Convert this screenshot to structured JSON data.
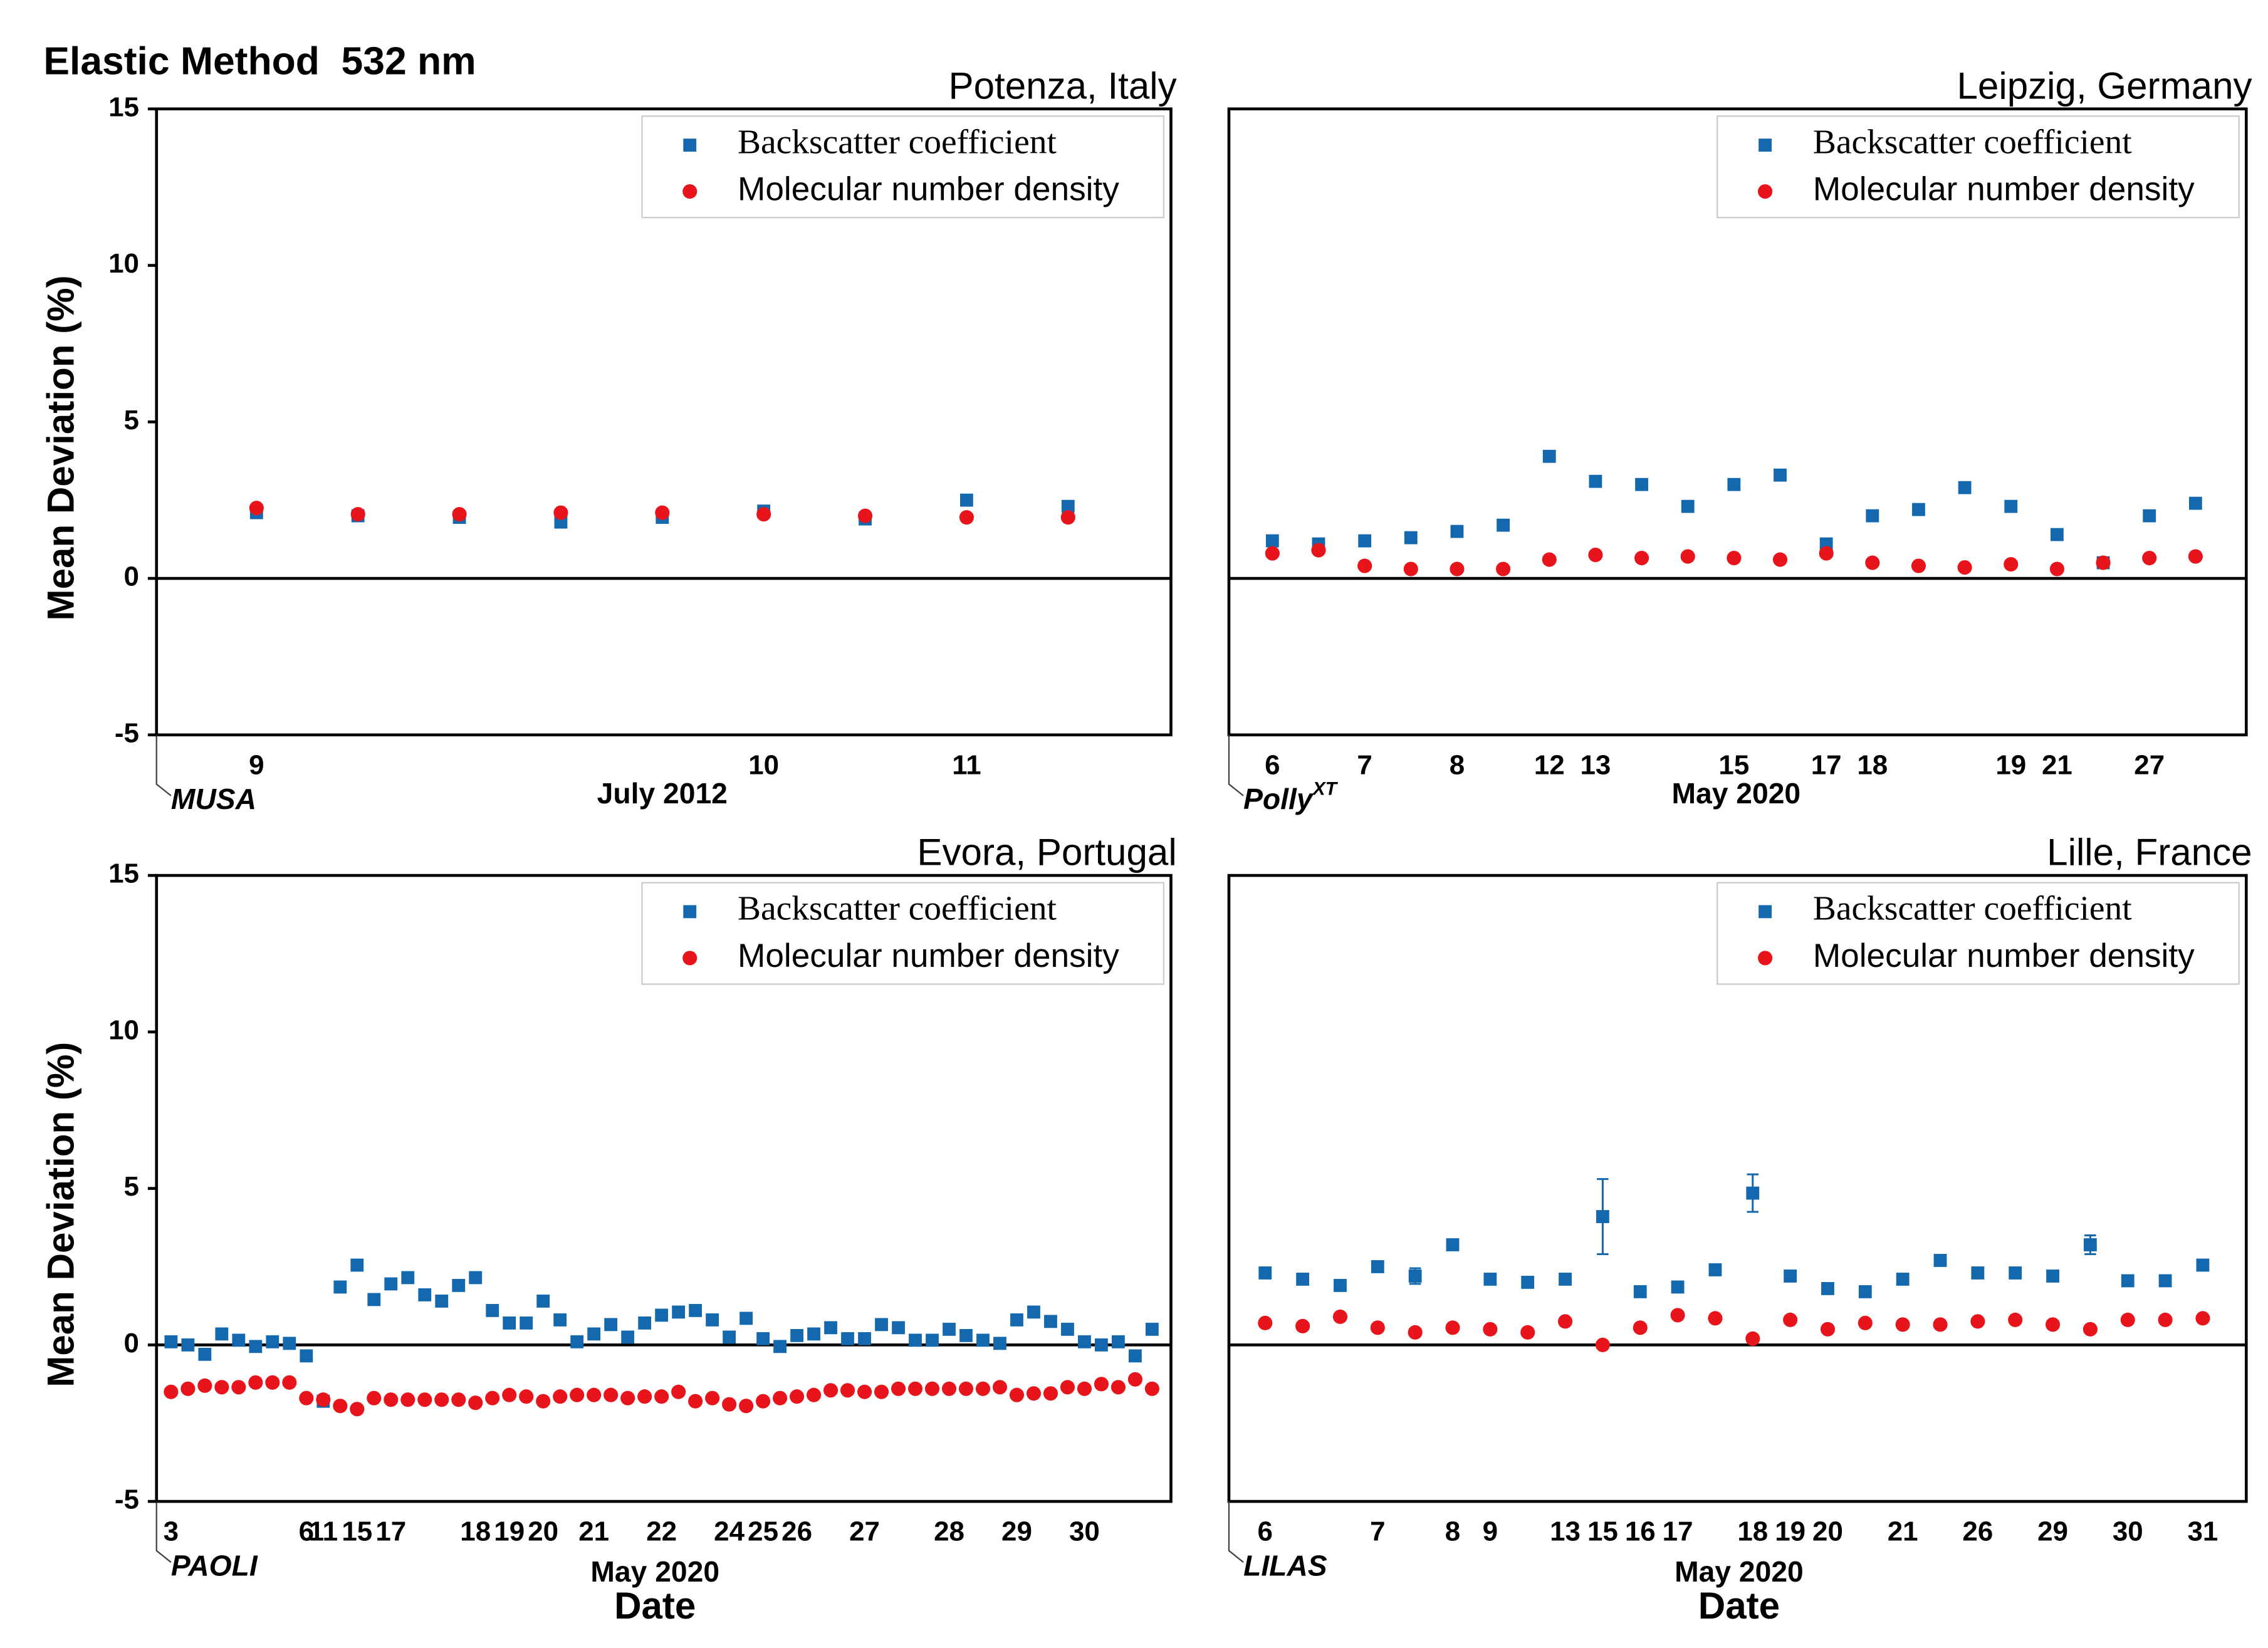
{
  "chart_data": [
    {
      "type": "scatter",
      "suptitle": "Elastic Method  532 nm",
      "title": "Potenza, Italy",
      "ylabel": "Mean Deviation (%)",
      "instrument": "MUSA",
      "month_label": "July 2012",
      "categories": [
        "9",
        null,
        null,
        null,
        null,
        "10",
        null,
        "11",
        null
      ],
      "series": [
        {
          "name": "Backscatter coefficient",
          "color": "#1468ad",
          "marker": "square",
          "values": [
            2.1,
            2.0,
            1.95,
            1.8,
            1.95,
            2.15,
            1.9,
            2.5,
            2.3
          ]
        },
        {
          "name": "Molecular number density",
          "color": "#e8141c",
          "marker": "circle",
          "values": [
            2.25,
            2.05,
            2.05,
            2.1,
            2.1,
            2.05,
            2.0,
            1.95,
            1.95
          ]
        }
      ],
      "ylim": [
        -5,
        15
      ],
      "yticks": [
        -5,
        0,
        5,
        10,
        15
      ],
      "zero_line": true,
      "legend": "upper right"
    },
    {
      "type": "scatter",
      "title": "Leipzig, Germany",
      "instrument": "Polly",
      "instrument_sup": "XT",
      "month_label": "May 2020",
      "categories": [
        "6",
        null,
        "7",
        null,
        "8",
        null,
        "12",
        "13",
        null,
        null,
        "15",
        null,
        "17",
        "18",
        null,
        null,
        "19",
        "21",
        null,
        "27",
        null
      ],
      "series": [
        {
          "name": "Backscatter coefficient",
          "color": "#1468ad",
          "marker": "square",
          "values": [
            1.2,
            1.1,
            1.2,
            1.3,
            1.5,
            1.7,
            3.9,
            3.1,
            3.0,
            2.3,
            3.0,
            3.3,
            1.1,
            2.0,
            2.2,
            2.9,
            2.3,
            1.4,
            0.5,
            2.0,
            2.4
          ]
        },
        {
          "name": "Molecular number density",
          "color": "#e8141c",
          "marker": "circle",
          "values": [
            0.8,
            0.9,
            0.4,
            0.3,
            0.3,
            0.3,
            0.6,
            0.75,
            0.65,
            0.7,
            0.65,
            0.6,
            0.8,
            0.5,
            0.4,
            0.35,
            0.45,
            0.3,
            0.5,
            0.65,
            0.7
          ]
        }
      ],
      "ylim": [
        -5,
        15
      ],
      "zero_line": true,
      "legend": "upper right"
    },
    {
      "type": "scatter",
      "title": "Evora, Portugal",
      "ylabel": "Mean Deviation (%)",
      "instrument": "PAOLI",
      "month_label": "May 2020",
      "xlabel": "Date",
      "categories": [
        "3",
        null,
        null,
        null,
        null,
        null,
        null,
        null,
        "6",
        "11",
        null,
        "15",
        null,
        "17",
        null,
        null,
        null,
        null,
        "18",
        null,
        "19",
        null,
        "20",
        null,
        null,
        "21",
        null,
        null,
        null,
        "22",
        null,
        null,
        null,
        "24",
        null,
        "25",
        null,
        "26",
        null,
        null,
        null,
        "27",
        null,
        null,
        null,
        null,
        "28",
        null,
        null,
        null,
        "29",
        null,
        null,
        null,
        "30",
        null,
        null,
        null,
        null
      ],
      "series": [
        {
          "name": "Backscatter coefficient",
          "color": "#1468ad",
          "marker": "square",
          "values": [
            0.1,
            0.0,
            -0.3,
            0.35,
            0.15,
            -0.05,
            0.1,
            0.05,
            -0.35,
            -1.8,
            1.85,
            2.55,
            1.45,
            1.95,
            2.15,
            1.6,
            1.4,
            1.9,
            2.15,
            1.1,
            0.7,
            0.7,
            1.4,
            0.8,
            0.1,
            0.35,
            0.65,
            0.25,
            0.7,
            0.95,
            1.05,
            1.1,
            0.8,
            0.25,
            0.85,
            0.2,
            -0.05,
            0.3,
            0.35,
            0.55,
            0.2,
            0.2,
            0.65,
            0.55,
            0.15,
            0.15,
            0.5,
            0.3,
            0.15,
            0.05,
            0.8,
            1.05,
            0.75,
            0.5,
            0.1,
            0.0,
            0.1,
            -0.35,
            0.5
          ]
        },
        {
          "name": "Molecular number density",
          "color": "#e8141c",
          "marker": "circle",
          "values": [
            -1.5,
            -1.4,
            -1.3,
            -1.35,
            -1.35,
            -1.2,
            -1.2,
            -1.2,
            -1.7,
            -1.75,
            -1.95,
            -2.05,
            -1.7,
            -1.75,
            -1.75,
            -1.75,
            -1.75,
            -1.75,
            -1.85,
            -1.7,
            -1.6,
            -1.65,
            -1.8,
            -1.65,
            -1.6,
            -1.6,
            -1.6,
            -1.7,
            -1.65,
            -1.65,
            -1.5,
            -1.8,
            -1.7,
            -1.9,
            -1.95,
            -1.8,
            -1.7,
            -1.65,
            -1.6,
            -1.45,
            -1.45,
            -1.5,
            -1.5,
            -1.4,
            -1.4,
            -1.4,
            -1.4,
            -1.4,
            -1.4,
            -1.35,
            -1.6,
            -1.55,
            -1.55,
            -1.35,
            -1.4,
            -1.25,
            -1.35,
            -1.1,
            -1.4
          ]
        }
      ],
      "ylim": [
        -5,
        15
      ],
      "yticks": [
        -5,
        0,
        5,
        10,
        15
      ],
      "zero_line": true,
      "legend": "upper right"
    },
    {
      "type": "scatter",
      "title": "Lille, France",
      "instrument": "LILAS",
      "month_label": "May 2020",
      "xlabel": "Date",
      "categories": [
        "6",
        null,
        null,
        "7",
        null,
        "8",
        "9",
        null,
        "13",
        "15",
        "16",
        "17",
        null,
        "18",
        "19",
        "20",
        null,
        "21",
        null,
        "26",
        null,
        "29",
        null,
        "30",
        null,
        "31"
      ],
      "series": [
        {
          "name": "Backscatter coefficient",
          "color": "#1468ad",
          "marker": "square",
          "values": [
            2.3,
            2.1,
            1.9,
            2.5,
            2.2,
            3.2,
            2.1,
            2.0,
            2.1,
            4.1,
            1.7,
            1.85,
            2.4,
            4.85,
            2.2,
            1.8,
            1.7,
            2.1,
            2.7,
            2.3,
            2.3,
            2.2,
            3.2,
            2.05,
            2.05,
            2.55
          ],
          "errors": [
            null,
            null,
            null,
            null,
            0.25,
            null,
            null,
            null,
            null,
            1.2,
            null,
            null,
            null,
            0.6,
            null,
            null,
            null,
            null,
            null,
            null,
            null,
            null,
            0.3,
            null,
            null,
            null
          ]
        },
        {
          "name": "Molecular number density",
          "color": "#e8141c",
          "marker": "circle",
          "values": [
            0.7,
            0.6,
            0.9,
            0.55,
            0.4,
            0.55,
            0.5,
            0.4,
            0.75,
            0.0,
            0.55,
            0.95,
            0.85,
            0.2,
            0.8,
            0.5,
            0.7,
            0.65,
            0.65,
            0.75,
            0.8,
            0.65,
            0.5,
            0.8,
            0.8,
            0.85
          ]
        }
      ],
      "ylim": [
        -5,
        15
      ],
      "zero_line": true,
      "legend": "upper right"
    }
  ]
}
